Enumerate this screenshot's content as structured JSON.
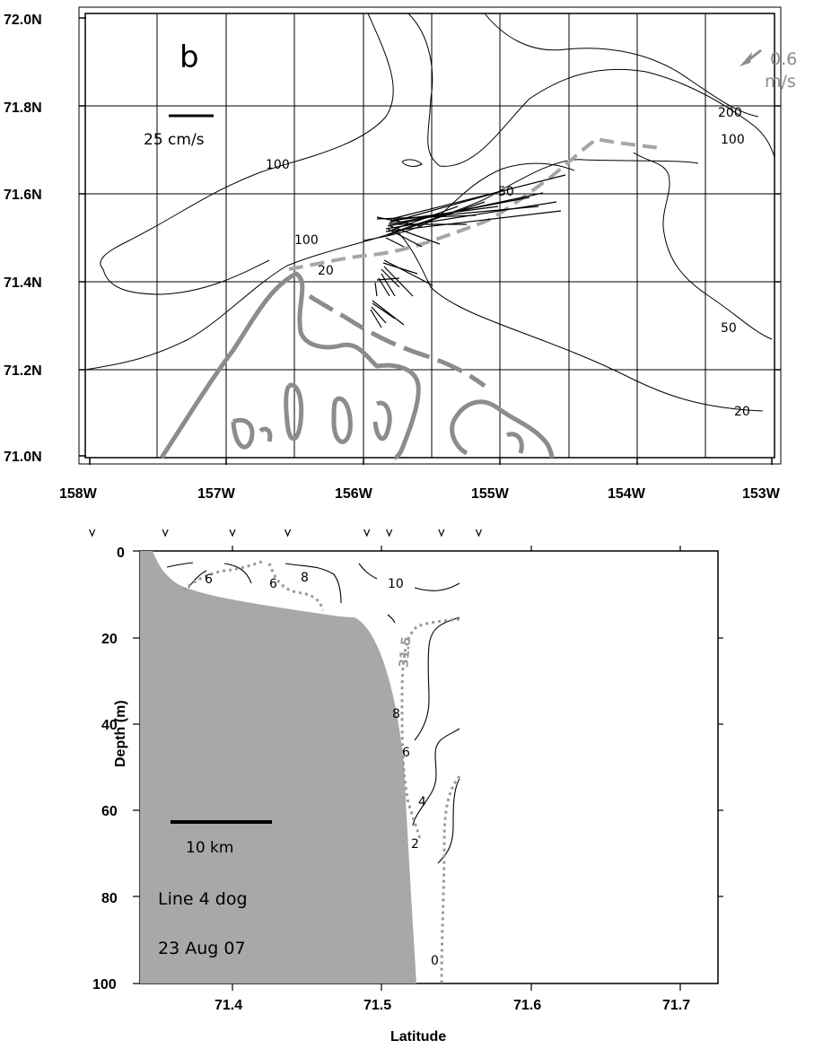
{
  "map_panel": {
    "panel_label": "b",
    "x_ticks": [
      "158W",
      "157W",
      "156W",
      "155W",
      "154W",
      "153W"
    ],
    "y_ticks": [
      "72.0N",
      "71.8N",
      "71.6N",
      "71.4N",
      "71.2N",
      "71.0N"
    ],
    "scale_label": "25 cm/s",
    "arrow_label_value": "0.6",
    "arrow_label_unit": "m/s",
    "contour_labels": [
      "100",
      "100",
      "100",
      "200",
      "50",
      "50",
      "20",
      "20"
    ],
    "colors": {
      "coast": "#8c8c8c",
      "contour": "#000000",
      "track": "#a6a6a6"
    }
  },
  "section_panel": {
    "x_ticks": [
      "71.4",
      "71.5",
      "71.6",
      "71.7"
    ],
    "y_ticks": [
      "0",
      "20",
      "40",
      "60",
      "80",
      "100"
    ],
    "xlabel": "Latitude",
    "ylabel": "Depth (m)",
    "scale_label": "10 km",
    "line_label": "Line 4 dog",
    "date_label": "23 Aug 07",
    "contour_labels": [
      "6",
      "6",
      "8",
      "10",
      "31.5",
      "8",
      "6",
      "4",
      "2",
      "0"
    ],
    "station_latitudes": [
      71.306,
      71.355,
      71.4,
      71.437,
      71.49,
      71.505,
      71.54,
      71.565
    ],
    "colors": {
      "bottom_fill": "#a8a8a8",
      "salinity": "#999999"
    }
  }
}
